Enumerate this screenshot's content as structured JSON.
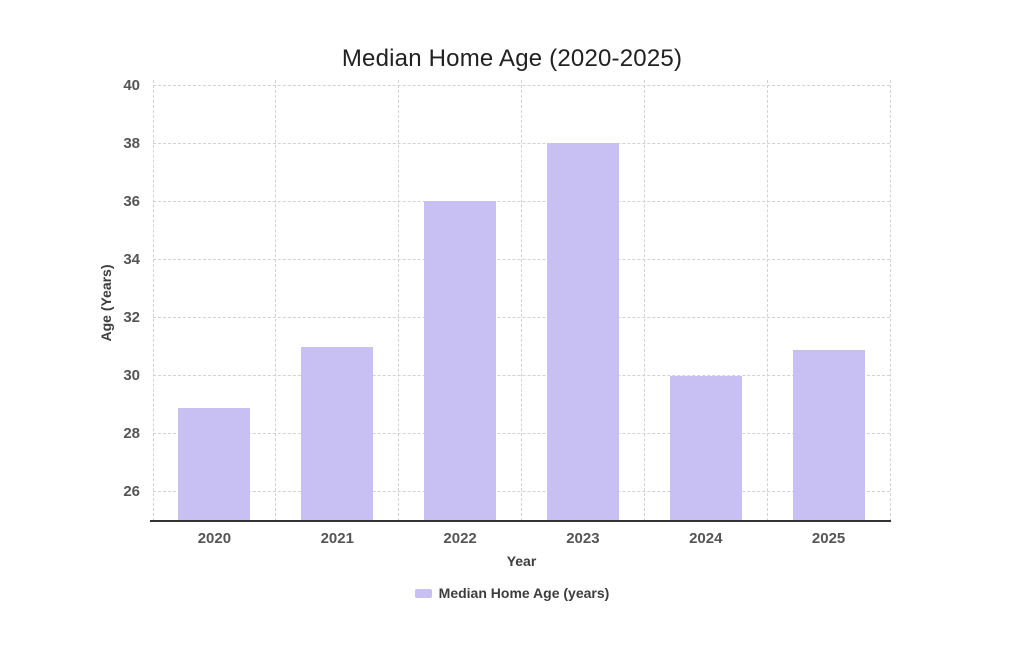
{
  "chart_data": {
    "type": "bar",
    "title": "Median Home Age (2020-2025)",
    "categories": [
      "2020",
      "2021",
      "2022",
      "2023",
      "2024",
      "2025"
    ],
    "series": [
      {
        "name": "Median Home Age (years)",
        "values": [
          28.9,
          31.0,
          36.0,
          38.0,
          30.0,
          30.9
        ]
      }
    ],
    "xlabel": "Year",
    "ylabel": "Age (Years)",
    "ylim": [
      25,
      40
    ],
    "yticks": [
      26,
      28,
      30,
      32,
      34,
      36,
      38,
      40
    ],
    "grid": "dashed",
    "legend_position": "bottom",
    "colors": {
      "bar": "#c8bff2",
      "grid": "#d2d2d2",
      "axis_line": "#333333",
      "title_text": "#212121",
      "tick_text": "#555555",
      "label_text": "#3d3d3d"
    }
  }
}
